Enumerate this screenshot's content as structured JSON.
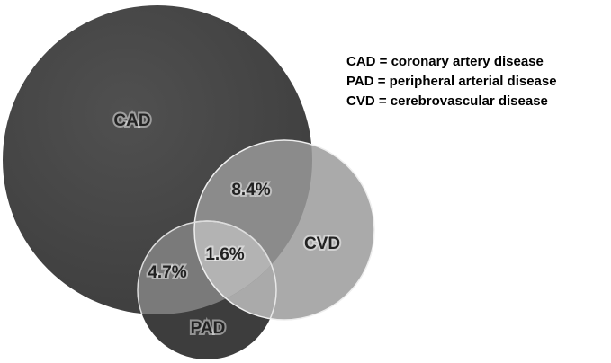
{
  "sets": [
    {
      "label": "CAD"
    },
    {
      "label": "CVD"
    },
    {
      "label": "PAD"
    }
  ],
  "intersections": [
    {
      "label": "8.4%"
    },
    {
      "label": "1.6%"
    },
    {
      "label": "4.7%"
    }
  ],
  "legend": [
    "CAD = coronary artery disease",
    "PAD = peripheral arterial disease",
    "CVD = cerebrovascular disease"
  ]
}
